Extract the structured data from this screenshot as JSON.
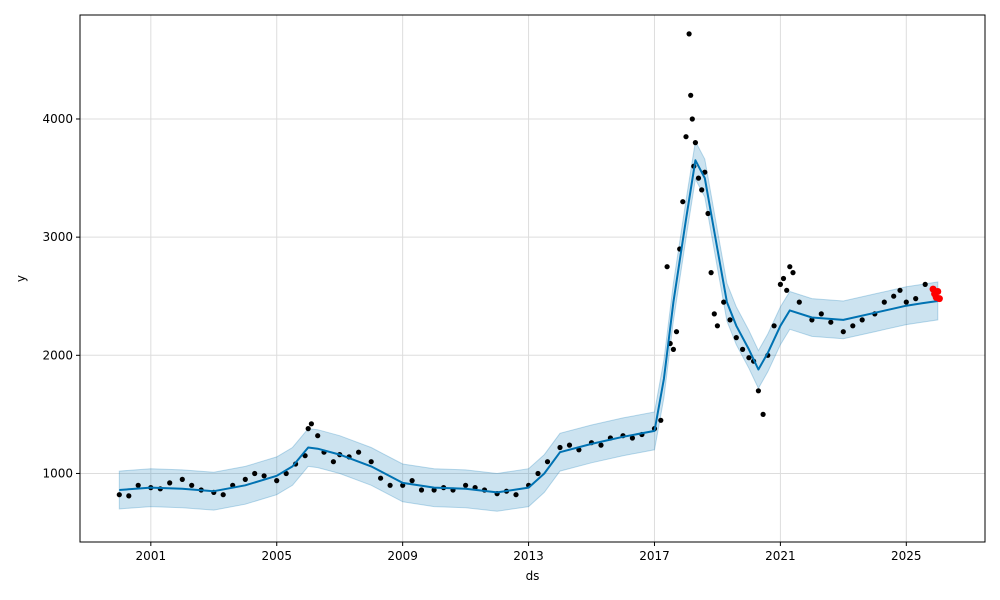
{
  "chart_data": {
    "type": "line",
    "title": "",
    "xlabel": "ds",
    "ylabel": "y",
    "grid": true,
    "legend": "none",
    "xlim": [
      1998.75,
      2027.5
    ],
    "ylim": [
      420,
      4880
    ],
    "x_ticks": [
      2001,
      2005,
      2009,
      2013,
      2017,
      2021,
      2025
    ],
    "x_tick_labels": [
      "2001",
      "2005",
      "2009",
      "2013",
      "2017",
      "2021",
      "2025"
    ],
    "y_ticks": [
      1000,
      2000,
      3000,
      4000
    ],
    "y_tick_labels": [
      "1000",
      "2000",
      "3000",
      "4000"
    ],
    "colors": {
      "observed": "#000000",
      "forecast_line": "#0072B2",
      "interval_fill": "#0072B2",
      "forecast_points": "#ff0000",
      "grid": "#dddddd"
    },
    "series": [
      {
        "kind": "trend",
        "x": [
          2000.0,
          2001.0,
          2002.0,
          2003.0,
          2004.0,
          2005.0,
          2005.5,
          2006.0,
          2006.3,
          2007.0,
          2008.0,
          2009.0,
          2010.0,
          2011.0,
          2012.0,
          2013.0,
          2013.5,
          2014.0,
          2015.0,
          2016.0,
          2017.0,
          2017.3,
          2017.6,
          2018.0,
          2018.3,
          2018.6,
          2019.0,
          2019.3,
          2019.6,
          2020.0,
          2020.3,
          2020.6,
          2021.0,
          2021.3,
          2022.0,
          2023.0,
          2024.0,
          2025.0,
          2025.5,
          2026.0
        ],
        "y": [
          860,
          880,
          870,
          850,
          900,
          980,
          1060,
          1220,
          1210,
          1160,
          1060,
          920,
          880,
          870,
          840,
          880,
          1000,
          1180,
          1250,
          1310,
          1360,
          1800,
          2450,
          3150,
          3650,
          3500,
          2900,
          2450,
          2250,
          2050,
          1880,
          2020,
          2250,
          2380,
          2320,
          2300,
          2360,
          2420,
          2440,
          2460
        ]
      },
      {
        "kind": "interval",
        "x": [
          2000.0,
          2001.0,
          2002.0,
          2003.0,
          2004.0,
          2005.0,
          2005.5,
          2006.0,
          2006.3,
          2007.0,
          2008.0,
          2009.0,
          2010.0,
          2011.0,
          2012.0,
          2013.0,
          2013.5,
          2014.0,
          2015.0,
          2016.0,
          2017.0,
          2017.3,
          2017.6,
          2018.0,
          2018.3,
          2018.6,
          2019.0,
          2019.3,
          2019.6,
          2020.0,
          2020.3,
          2020.6,
          2021.0,
          2021.3,
          2022.0,
          2023.0,
          2024.0,
          2025.0,
          2025.5,
          2026.0
        ],
        "lower": [
          700,
          720,
          710,
          690,
          740,
          820,
          900,
          1060,
          1050,
          1000,
          900,
          760,
          720,
          710,
          680,
          720,
          840,
          1020,
          1090,
          1150,
          1200,
          1640,
          2290,
          2990,
          3490,
          3340,
          2740,
          2290,
          2090,
          1890,
          1720,
          1860,
          2090,
          2220,
          2160,
          2140,
          2200,
          2260,
          2280,
          2300
        ],
        "upper": [
          1020,
          1040,
          1030,
          1010,
          1060,
          1140,
          1220,
          1380,
          1370,
          1320,
          1220,
          1080,
          1040,
          1030,
          1000,
          1040,
          1160,
          1340,
          1410,
          1470,
          1520,
          1960,
          2610,
          3310,
          3810,
          3660,
          3060,
          2610,
          2410,
          2210,
          2040,
          2180,
          2410,
          2540,
          2480,
          2460,
          2520,
          2580,
          2600,
          2620
        ]
      },
      {
        "kind": "observed",
        "x": [
          2000.0,
          2000.3,
          2000.6,
          2001.0,
          2001.3,
          2001.6,
          2002.0,
          2002.3,
          2002.6,
          2003.0,
          2003.3,
          2003.6,
          2004.0,
          2004.3,
          2004.6,
          2005.0,
          2005.3,
          2005.6,
          2005.9,
          2006.0,
          2006.1,
          2006.3,
          2006.5,
          2006.8,
          2007.0,
          2007.3,
          2007.6,
          2008.0,
          2008.3,
          2008.6,
          2009.0,
          2009.3,
          2009.6,
          2010.0,
          2010.3,
          2010.6,
          2011.0,
          2011.3,
          2011.6,
          2012.0,
          2012.3,
          2012.6,
          2013.0,
          2013.3,
          2013.6,
          2014.0,
          2014.3,
          2014.6,
          2015.0,
          2015.3,
          2015.6,
          2016.0,
          2016.3,
          2016.6,
          2017.0,
          2017.2,
          2017.4,
          2017.5,
          2017.6,
          2017.7,
          2017.8,
          2017.9,
          2018.0,
          2018.1,
          2018.15,
          2018.2,
          2018.25,
          2018.3,
          2018.4,
          2018.5,
          2018.6,
          2018.7,
          2018.8,
          2018.9,
          2019.0,
          2019.2,
          2019.4,
          2019.6,
          2019.8,
          2020.0,
          2020.15,
          2020.3,
          2020.45,
          2020.6,
          2020.8,
          2021.0,
          2021.1,
          2021.2,
          2021.3,
          2021.4,
          2021.6,
          2022.0,
          2022.3,
          2022.6,
          2023.0,
          2023.3,
          2023.6,
          2024.0,
          2024.3,
          2024.6,
          2024.8,
          2025.0,
          2025.3,
          2025.6
        ],
        "y": [
          820,
          810,
          900,
          880,
          870,
          920,
          950,
          900,
          860,
          840,
          820,
          900,
          950,
          1000,
          980,
          940,
          1000,
          1080,
          1150,
          1380,
          1420,
          1320,
          1180,
          1100,
          1160,
          1140,
          1180,
          1100,
          960,
          900,
          900,
          940,
          860,
          860,
          880,
          860,
          900,
          880,
          860,
          830,
          850,
          820,
          900,
          1000,
          1100,
          1220,
          1240,
          1200,
          1260,
          1240,
          1300,
          1320,
          1300,
          1330,
          1380,
          1450,
          2750,
          2100,
          2050,
          2200,
          2900,
          3300,
          3850,
          4720,
          4200,
          4000,
          3600,
          3800,
          3500,
          3400,
          3550,
          3200,
          2700,
          2350,
          2250,
          2450,
          2300,
          2150,
          2050,
          1980,
          1950,
          1700,
          1500,
          2000,
          2250,
          2600,
          2650,
          2550,
          2750,
          2700,
          2450,
          2300,
          2350,
          2280,
          2200,
          2250,
          2300,
          2350,
          2450,
          2500,
          2550,
          2450,
          2480,
          2600
        ]
      },
      {
        "kind": "forecast",
        "x": [
          2025.85,
          2025.9,
          2025.95,
          2026.0,
          2026.05
        ],
        "y": [
          2560,
          2520,
          2490,
          2540,
          2480
        ]
      }
    ]
  }
}
